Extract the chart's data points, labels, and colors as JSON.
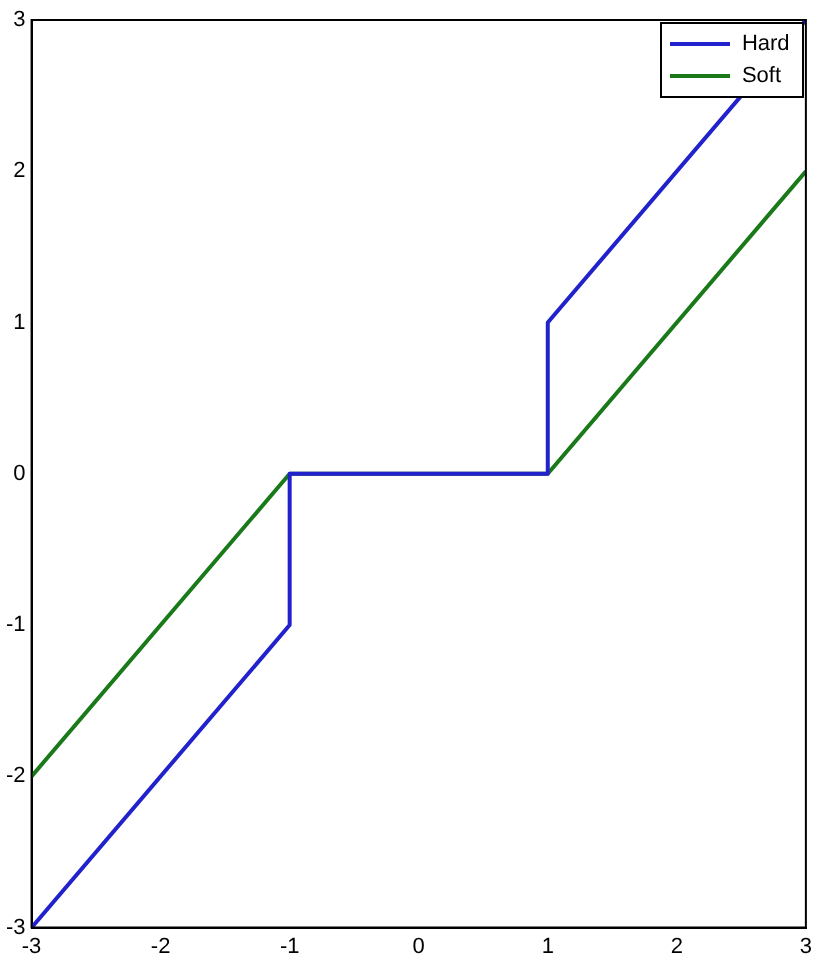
{
  "chart_data": {
    "type": "line",
    "xlim": [
      -3,
      3
    ],
    "ylim": [
      -3,
      3
    ],
    "xticks": [
      -3,
      -2,
      -1,
      0,
      1,
      2,
      3
    ],
    "yticks": [
      -3,
      -2,
      -1,
      0,
      1,
      2,
      3
    ],
    "grid": false,
    "legend": "top right",
    "marker": "none",
    "line_style": "solid",
    "series": [
      {
        "name": "Hard",
        "color": "#2222cc",
        "x": [
          -3,
          -1,
          -1,
          1,
          1,
          3
        ],
        "values": [
          -3,
          -1,
          0,
          0,
          1,
          3
        ]
      },
      {
        "name": "Soft",
        "color": "#1a7a1a",
        "x": [
          -3,
          -1,
          1,
          3
        ],
        "values": [
          -2,
          0,
          0,
          2
        ]
      }
    ]
  }
}
